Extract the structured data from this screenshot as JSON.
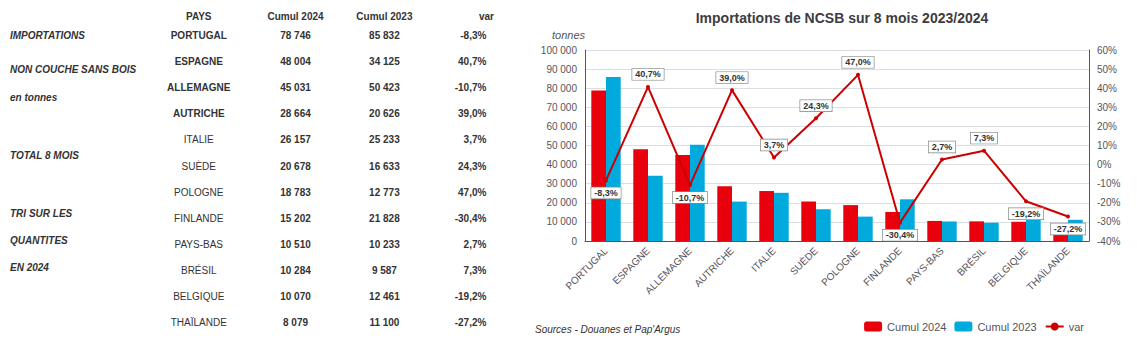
{
  "chart_data": {
    "type": "bar",
    "title": "Importations de NCSB sur 8 mois 2023/2024",
    "y_label": "tonnes",
    "categories": [
      "PORTUGAL",
      "ESPAGNE",
      "ALLEMAGNE",
      "AUTRICHE",
      "ITALIE",
      "SUÈDE",
      "POLOGNE",
      "FINLANDE",
      "PAYS-BAS",
      "BRÉSIL",
      "BELGIQUE",
      "THAÏLANDE"
    ],
    "series": [
      {
        "name": "Cumul 2024",
        "type": "bar",
        "color": "#e8000d",
        "values": [
          78746,
          48004,
          45031,
          28664,
          26157,
          20678,
          18783,
          15202,
          10510,
          10284,
          10070,
          8079
        ]
      },
      {
        "name": "Cumul 2023",
        "type": "bar",
        "color": "#00aadd",
        "values": [
          85832,
          34125,
          50423,
          20626,
          25233,
          16633,
          12773,
          21828,
          10233,
          9587,
          12461,
          11100
        ]
      },
      {
        "name": "var",
        "type": "line",
        "axis": "y2",
        "color": "#cc0000",
        "data_labels": true,
        "values": [
          -8.3,
          40.7,
          -10.7,
          39.0,
          3.7,
          24.3,
          47.0,
          -30.4,
          2.7,
          7.3,
          -19.2,
          -27.2
        ],
        "value_labels": [
          "-8,3%",
          "40,7%",
          "-10,7%",
          "39,0%",
          "3,7%",
          "24,3%",
          "47,0%",
          "-30,4%",
          "2,7%",
          "7,3%",
          "-19,2%",
          "-27,2%"
        ]
      }
    ],
    "ylim": [
      0,
      100000
    ],
    "yticks": [
      0,
      {
        "value": 10000,
        "label": "10 000"
      },
      {
        "value": 20000,
        "label": "20 000"
      },
      {
        "value": 30000,
        "label": "30 000"
      },
      {
        "value": 40000,
        "label": "40 000"
      },
      {
        "value": 50000,
        "label": "50 000"
      },
      {
        "value": 60000,
        "label": "60 000"
      },
      {
        "value": 70000,
        "label": "70 000"
      },
      {
        "value": 80000,
        "label": "80 000"
      },
      {
        "value": 90000,
        "label": "90 000"
      },
      {
        "value": 100000,
        "label": "100 000"
      }
    ],
    "y2lim": [
      -40,
      60
    ],
    "y2ticks": [
      {
        "value": -40,
        "label": "-40%"
      },
      {
        "value": -30,
        "label": "-30%"
      },
      {
        "value": -20,
        "label": "-20%"
      },
      {
        "value": -10,
        "label": "-10%"
      },
      {
        "value": 0,
        "label": "0%"
      },
      {
        "value": 10,
        "label": "10%"
      },
      {
        "value": 20,
        "label": "20%"
      },
      {
        "value": 30,
        "label": "30%"
      },
      {
        "value": 40,
        "label": "40%"
      },
      {
        "value": 50,
        "label": "50%"
      },
      {
        "value": 60,
        "label": "60%"
      }
    ],
    "grid": true,
    "legend": "bottom",
    "source": "Sources - Douanes et Pap'Argus",
    "notes": [
      "IMPORTATIONS",
      "NON COUCHE SANS BOIS",
      "en tonnes",
      "TOTAL 8 MOIS",
      "TRI SUR LES",
      "QUANTITES",
      "EN 2024"
    ],
    "table": {
      "headers": [
        "PAYS",
        "Cumul 2024",
        "Cumul 2023",
        "var"
      ],
      "rows": [
        [
          "PORTUGAL",
          "78 746",
          "85 832",
          "-8,3%"
        ],
        [
          "ESPAGNE",
          "48 004",
          "34 125",
          "40,7%"
        ],
        [
          "ALLEMAGNE",
          "45 031",
          "50 423",
          "-10,7%"
        ],
        [
          "AUTRICHE",
          "28 664",
          "20 626",
          "39,0%"
        ],
        [
          "ITALIE",
          "26 157",
          "25 233",
          "3,7%"
        ],
        [
          "SUÈDE",
          "20 678",
          "16 633",
          "24,3%"
        ],
        [
          "POLOGNE",
          "18 783",
          "12 773",
          "47,0%"
        ],
        [
          "FINLANDE",
          "15 202",
          "21 828",
          "-30,4%"
        ],
        [
          "PAYS-BAS",
          "10 510",
          "10 233",
          "2,7%"
        ],
        [
          "BRÉSIL",
          "10 284",
          "9 587",
          "7,3%"
        ],
        [
          "BELGIQUE",
          "10 070",
          "12 461",
          "-19,2%"
        ],
        [
          "THAÏLANDE",
          "8 079",
          "11 100",
          "-27,2%"
        ]
      ]
    }
  }
}
